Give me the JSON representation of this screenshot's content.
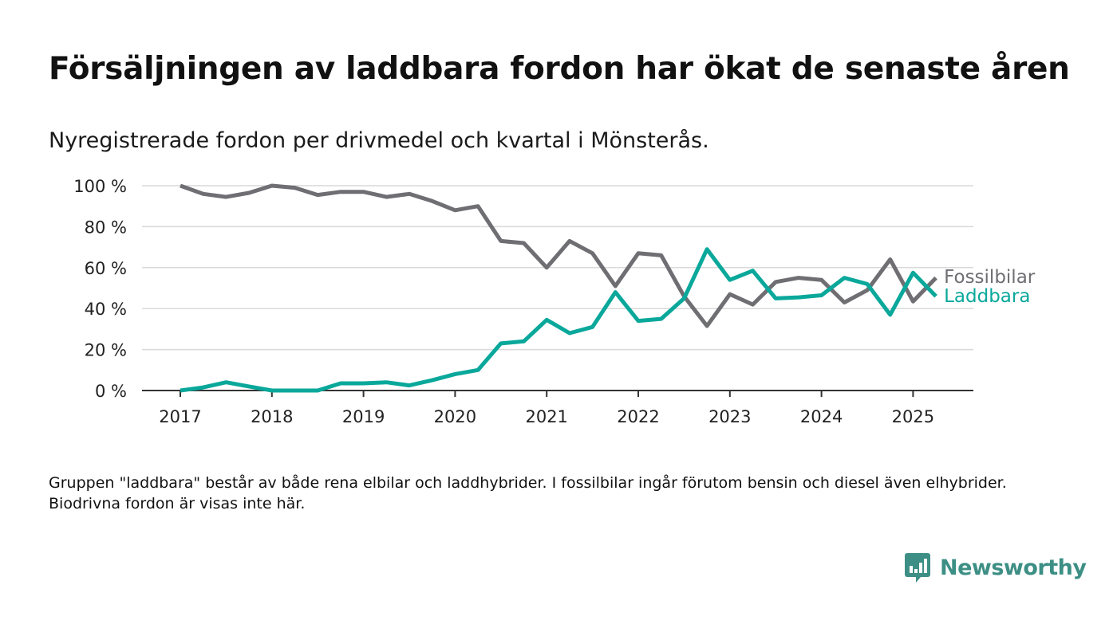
{
  "title": "Försäljningen av laddbara fordon har ökat de senaste åren",
  "subtitle": "Nyregistrerade fordon per drivmedel och kvartal i Mönsterås.",
  "note": "Gruppen \"laddbara\" består av både rena elbilar och laddhybrider. I fossilbilar ingår förutom bensin och diesel även elhybrider. Biodrivna fordon är visas inte här.",
  "brand": {
    "name": "Newsworthy",
    "icon": "newsworthy-logo-icon",
    "color": "#3d8f85"
  },
  "chart_data": {
    "type": "line",
    "x_unit": "quarter",
    "x": [
      "2017Q1",
      "2017Q2",
      "2017Q3",
      "2017Q4",
      "2018Q1",
      "2018Q2",
      "2018Q3",
      "2018Q4",
      "2019Q1",
      "2019Q2",
      "2019Q3",
      "2019Q4",
      "2020Q1",
      "2020Q2",
      "2020Q3",
      "2020Q4",
      "2021Q1",
      "2021Q2",
      "2021Q3",
      "2021Q4",
      "2022Q1",
      "2022Q2",
      "2022Q3",
      "2022Q4",
      "2023Q1",
      "2023Q2",
      "2023Q3",
      "2023Q4",
      "2024Q1",
      "2024Q2",
      "2024Q3",
      "2024Q4",
      "2025Q1",
      "2025Q2"
    ],
    "series": [
      {
        "name": "Fossilbilar",
        "color": "#6e6e73",
        "values": [
          100,
          96,
          94.5,
          96.5,
          100,
          99,
          95.5,
          97,
          97,
          94.5,
          96,
          92.5,
          88,
          90,
          73,
          72,
          60,
          73,
          67,
          51,
          67,
          66,
          46,
          31.5,
          47,
          42,
          53,
          55,
          54,
          43,
          49,
          64,
          43.5,
          55
        ]
      },
      {
        "name": "Laddbara",
        "color": "#0aa89b",
        "values": [
          0,
          1.5,
          4,
          2,
          0,
          0,
          0,
          3.5,
          3.5,
          4,
          2.5,
          5,
          8,
          10,
          23,
          24,
          34.5,
          28,
          31,
          48,
          34,
          35,
          45,
          69,
          54,
          58.5,
          45,
          45.5,
          46.5,
          55,
          52,
          37,
          57.5,
          46
        ]
      }
    ],
    "x_ticks": [
      "2017",
      "2018",
      "2019",
      "2020",
      "2021",
      "2022",
      "2023",
      "2024",
      "2025"
    ],
    "y_ticks": [
      "0 %",
      "20 %",
      "40 %",
      "60 %",
      "80 %",
      "100 %"
    ],
    "ylim": [
      0,
      100
    ],
    "grid": true,
    "legend": "line-end labels"
  }
}
